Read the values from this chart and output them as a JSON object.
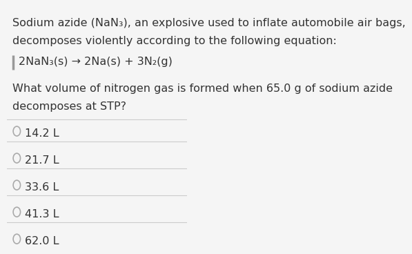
{
  "bg_color": "#f5f5f5",
  "text_color": "#333333",
  "line_color": "#cccccc",
  "left_bar_color": "#999999",
  "paragraph1_line1": "Sodium azide (NaN₃), an explosive used to inflate automobile air bags,",
  "paragraph1_line2": "decomposes violently according to the following equation:",
  "equation": "2NaN₃(s) → 2Na(s) + 3N₂(g)",
  "paragraph2_line1": "What volume of nitrogen gas is formed when 65.0 g of sodium azide",
  "paragraph2_line2": "decomposes at STP?",
  "options": [
    "14.2 L",
    "21.7 L",
    "33.6 L",
    "41.3 L",
    "62.0 L"
  ],
  "font_size_text": 11.5,
  "font_size_equation": 11.5,
  "font_size_options": 11.5
}
